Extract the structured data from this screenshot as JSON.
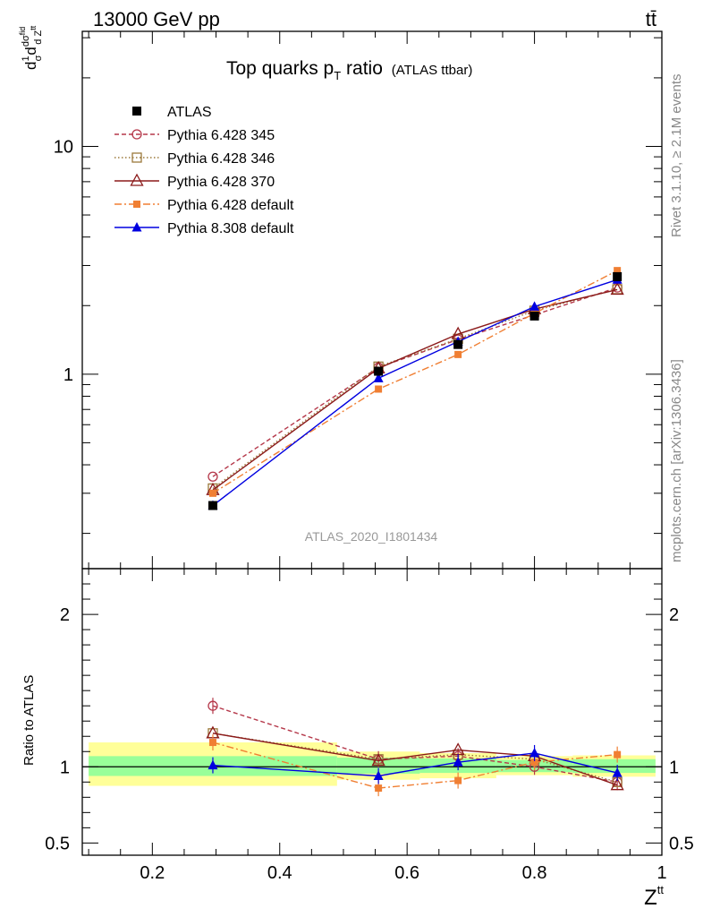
{
  "header": {
    "energy_label": "13000 GeV pp",
    "process_label": "tt̄",
    "plot_title": "Top quarks p",
    "plot_title_sub": "T",
    "plot_title_tail": " ratio",
    "plot_title_small": "(ATLAS ttbar)",
    "analysis_id": "ATLAS_2020_I1801434",
    "side_label_top": "Rivet 3.1.10, ≥ 2.1M events",
    "side_label_bottom": "mcplots.cern.ch [arXiv:1306.3436]"
  },
  "axes": {
    "ylabel_main": "d(1/σ)dσ^fid/dZ^tt",
    "ylabel_ratio": "Ratio to ATLAS",
    "xlabel": "Z",
    "xlabel_sup": "tt"
  },
  "chart_data": {
    "type": "line",
    "x": [
      0.295,
      0.555,
      0.68,
      0.8,
      0.93
    ],
    "xlim": [
      0.09,
      1.0
    ],
    "xticks": [
      "0.2",
      "0.4",
      "0.6",
      "0.8",
      "1"
    ],
    "xtick_values": [
      0.2,
      0.4,
      0.6,
      0.8,
      1.0
    ],
    "main": {
      "yscale": "log",
      "ylim": [
        0.14,
        32
      ],
      "yticks": [
        "1",
        "10"
      ],
      "ytick_values": [
        1,
        10
      ]
    },
    "ratio": {
      "ylim": [
        0.42,
        2.3
      ],
      "yticks": [
        "0.5",
        "1",
        "2"
      ],
      "ytick_values": [
        0.5,
        1,
        2
      ],
      "band_inner": [
        {
          "x0": 0.1,
          "x1": 0.49,
          "lo": 0.94,
          "hi": 1.07
        },
        {
          "x0": 0.49,
          "x1": 0.62,
          "lo": 0.955,
          "hi": 1.06
        },
        {
          "x0": 0.62,
          "x1": 0.74,
          "lo": 0.96,
          "hi": 1.055
        },
        {
          "x0": 0.74,
          "x1": 0.86,
          "lo": 0.965,
          "hi": 1.045
        },
        {
          "x0": 0.86,
          "x1": 0.99,
          "lo": 0.96,
          "hi": 1.05
        }
      ],
      "band_outer": [
        {
          "x0": 0.1,
          "x1": 0.49,
          "lo": 0.875,
          "hi": 1.16
        },
        {
          "x0": 0.49,
          "x1": 0.62,
          "lo": 0.915,
          "hi": 1.1
        },
        {
          "x0": 0.62,
          "x1": 0.74,
          "lo": 0.925,
          "hi": 1.09
        },
        {
          "x0": 0.74,
          "x1": 0.86,
          "lo": 0.945,
          "hi": 1.07
        },
        {
          "x0": 0.86,
          "x1": 0.99,
          "lo": 0.935,
          "hi": 1.075
        }
      ]
    },
    "series": [
      {
        "name": "ATLAS",
        "color": "#000000",
        "marker": "filled-square",
        "dash": "none",
        "values": [
          0.265,
          1.03,
          1.35,
          1.8,
          2.68
        ],
        "ratio": [
          1,
          1,
          1,
          1,
          1
        ]
      },
      {
        "name": "Pythia 6.428 345",
        "color": "#b5384a",
        "marker": "open-circle",
        "dash": "5,3",
        "values": [
          0.355,
          1.07,
          1.42,
          1.82,
          2.4
        ],
        "ratio": [
          1.4,
          1.05,
          1.07,
          1.0,
          0.9
        ]
      },
      {
        "name": "Pythia 6.428 346",
        "color": "#9c7a3c",
        "marker": "open-square",
        "dash": "1.5,2.5",
        "values": [
          0.315,
          1.08,
          1.43,
          1.9,
          2.36
        ],
        "ratio": [
          1.22,
          1.05,
          1.08,
          1.05,
          0.9
        ]
      },
      {
        "name": "Pythia 6.428 370",
        "color": "#8b1a1a",
        "marker": "open-triangle",
        "dash": "none",
        "values": [
          0.31,
          1.06,
          1.5,
          1.93,
          2.35
        ],
        "ratio": [
          1.22,
          1.04,
          1.11,
          1.07,
          0.88
        ]
      },
      {
        "name": "Pythia 6.428 default",
        "color": "#f07f33",
        "marker": "filled-square-small",
        "dash": "8,3,2,3",
        "values": [
          0.3,
          0.86,
          1.22,
          1.85,
          2.85
        ],
        "ratio": [
          1.16,
          0.86,
          0.91,
          1.03,
          1.08
        ]
      },
      {
        "name": "Pythia 8.308 default",
        "color": "#0000e0",
        "marker": "filled-triangle",
        "dash": "none",
        "values": [
          0.265,
          0.96,
          1.39,
          1.98,
          2.6
        ],
        "ratio": [
          1.01,
          0.94,
          1.03,
          1.09,
          0.96
        ]
      }
    ]
  }
}
